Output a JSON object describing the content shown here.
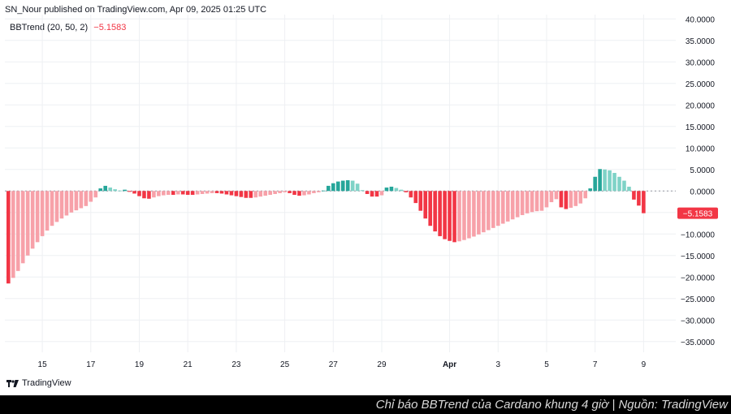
{
  "header": {
    "publisher_line": "SN_Nour published on TradingView.com, Apr 09, 2025 01:25 UTC"
  },
  "legend": {
    "indicator": "BBTrend (20, 50, 2)",
    "value": "−5.1583"
  },
  "branding": {
    "logo_text": "TradingView"
  },
  "caption": {
    "text": "Chỉ báo BBTrend của Cardano khung 4 giờ | Nguồn: TradingView"
  },
  "colors": {
    "pos_strong": "#26a69a",
    "pos_weak": "#7fd3c7",
    "neg_strong": "#f23645",
    "neg_weak": "#f7a1a9",
    "grid": "#eef0f3",
    "axis_text": "#131722",
    "last_value_bg": "#f23645"
  },
  "chart_data": {
    "type": "bar",
    "title": "BBTrend (20, 50, 2)",
    "xlabel": "",
    "ylabel": "",
    "ylim": [
      -37.5,
      41
    ],
    "y_ticks": [
      40,
      35,
      30,
      25,
      20,
      15,
      10,
      5,
      0,
      -5,
      -10,
      -15,
      -20,
      -25,
      -30,
      -35
    ],
    "y_tick_labels": [
      "40.0000",
      "35.0000",
      "30.0000",
      "25.0000",
      "20.0000",
      "15.0000",
      "10.0000",
      "5.0000",
      "0.0000",
      "−5.0000",
      "−10.0000",
      "−15.0000",
      "−20.0000",
      "−25.0000",
      "−30.0000",
      "−35.0000"
    ],
    "x_tick_labels": [
      {
        "label": "15",
        "index": 7
      },
      {
        "label": "17",
        "index": 17
      },
      {
        "label": "19",
        "index": 27
      },
      {
        "label": "21",
        "index": 37
      },
      {
        "label": "23",
        "index": 47
      },
      {
        "label": "25",
        "index": 57
      },
      {
        "label": "27",
        "index": 67
      },
      {
        "label": "29",
        "index": 77
      },
      {
        "label": "Apr",
        "index": 91
      },
      {
        "label": "3",
        "index": 101
      },
      {
        "label": "5",
        "index": 111
      },
      {
        "label": "7",
        "index": 121
      },
      {
        "label": "9",
        "index": 131
      }
    ],
    "last_value": -5.1583,
    "last_value_label": "−5.1583",
    "values": [
      -21.5,
      -20.2,
      -18.6,
      -16.8,
      -15.0,
      -13.4,
      -11.9,
      -10.5,
      -9.2,
      -8.1,
      -7.2,
      -6.4,
      -5.7,
      -5.0,
      -4.5,
      -4.0,
      -3.5,
      -2.5,
      -1.5,
      0.6,
      1.2,
      0.8,
      0.4,
      0.1,
      0.3,
      -0.2,
      -0.6,
      -1.2,
      -1.7,
      -1.8,
      -1.5,
      -1.2,
      -1.0,
      -0.9,
      -0.9,
      -0.8,
      -0.8,
      -0.9,
      -0.9,
      -0.8,
      -0.7,
      -0.6,
      -0.5,
      -0.5,
      -0.6,
      -0.8,
      -1.0,
      -1.2,
      -1.4,
      -1.6,
      -1.6,
      -1.5,
      -1.3,
      -1.1,
      -0.9,
      -0.7,
      -0.5,
      -0.3,
      -0.5,
      -0.9,
      -1.1,
      -1.0,
      -0.8,
      -0.5,
      -0.3,
      0.1,
      1.2,
      1.8,
      2.2,
      2.4,
      2.5,
      2.4,
      1.7,
      0.2,
      -0.7,
      -1.3,
      -1.3,
      -1.0,
      0.8,
      1.0,
      0.7,
      0.3,
      -0.3,
      -1.5,
      -2.8,
      -4.6,
      -6.4,
      -8.1,
      -9.4,
      -10.5,
      -11.2,
      -11.6,
      -11.9,
      -11.7,
      -11.4,
      -11.0,
      -10.6,
      -10.1,
      -9.6,
      -9.1,
      -8.6,
      -8.1,
      -7.6,
      -7.1,
      -6.6,
      -6.1,
      -5.6,
      -5.2,
      -4.9,
      -4.7,
      -4.6,
      -3.8,
      -2.6,
      -1.9,
      -3.8,
      -4.2,
      -3.9,
      -3.5,
      -2.9,
      -1.7,
      0.6,
      3.3,
      5.1,
      5.0,
      4.8,
      4.2,
      3.3,
      2.4,
      1.0,
      -2.0,
      -3.4,
      -5.16
    ]
  }
}
